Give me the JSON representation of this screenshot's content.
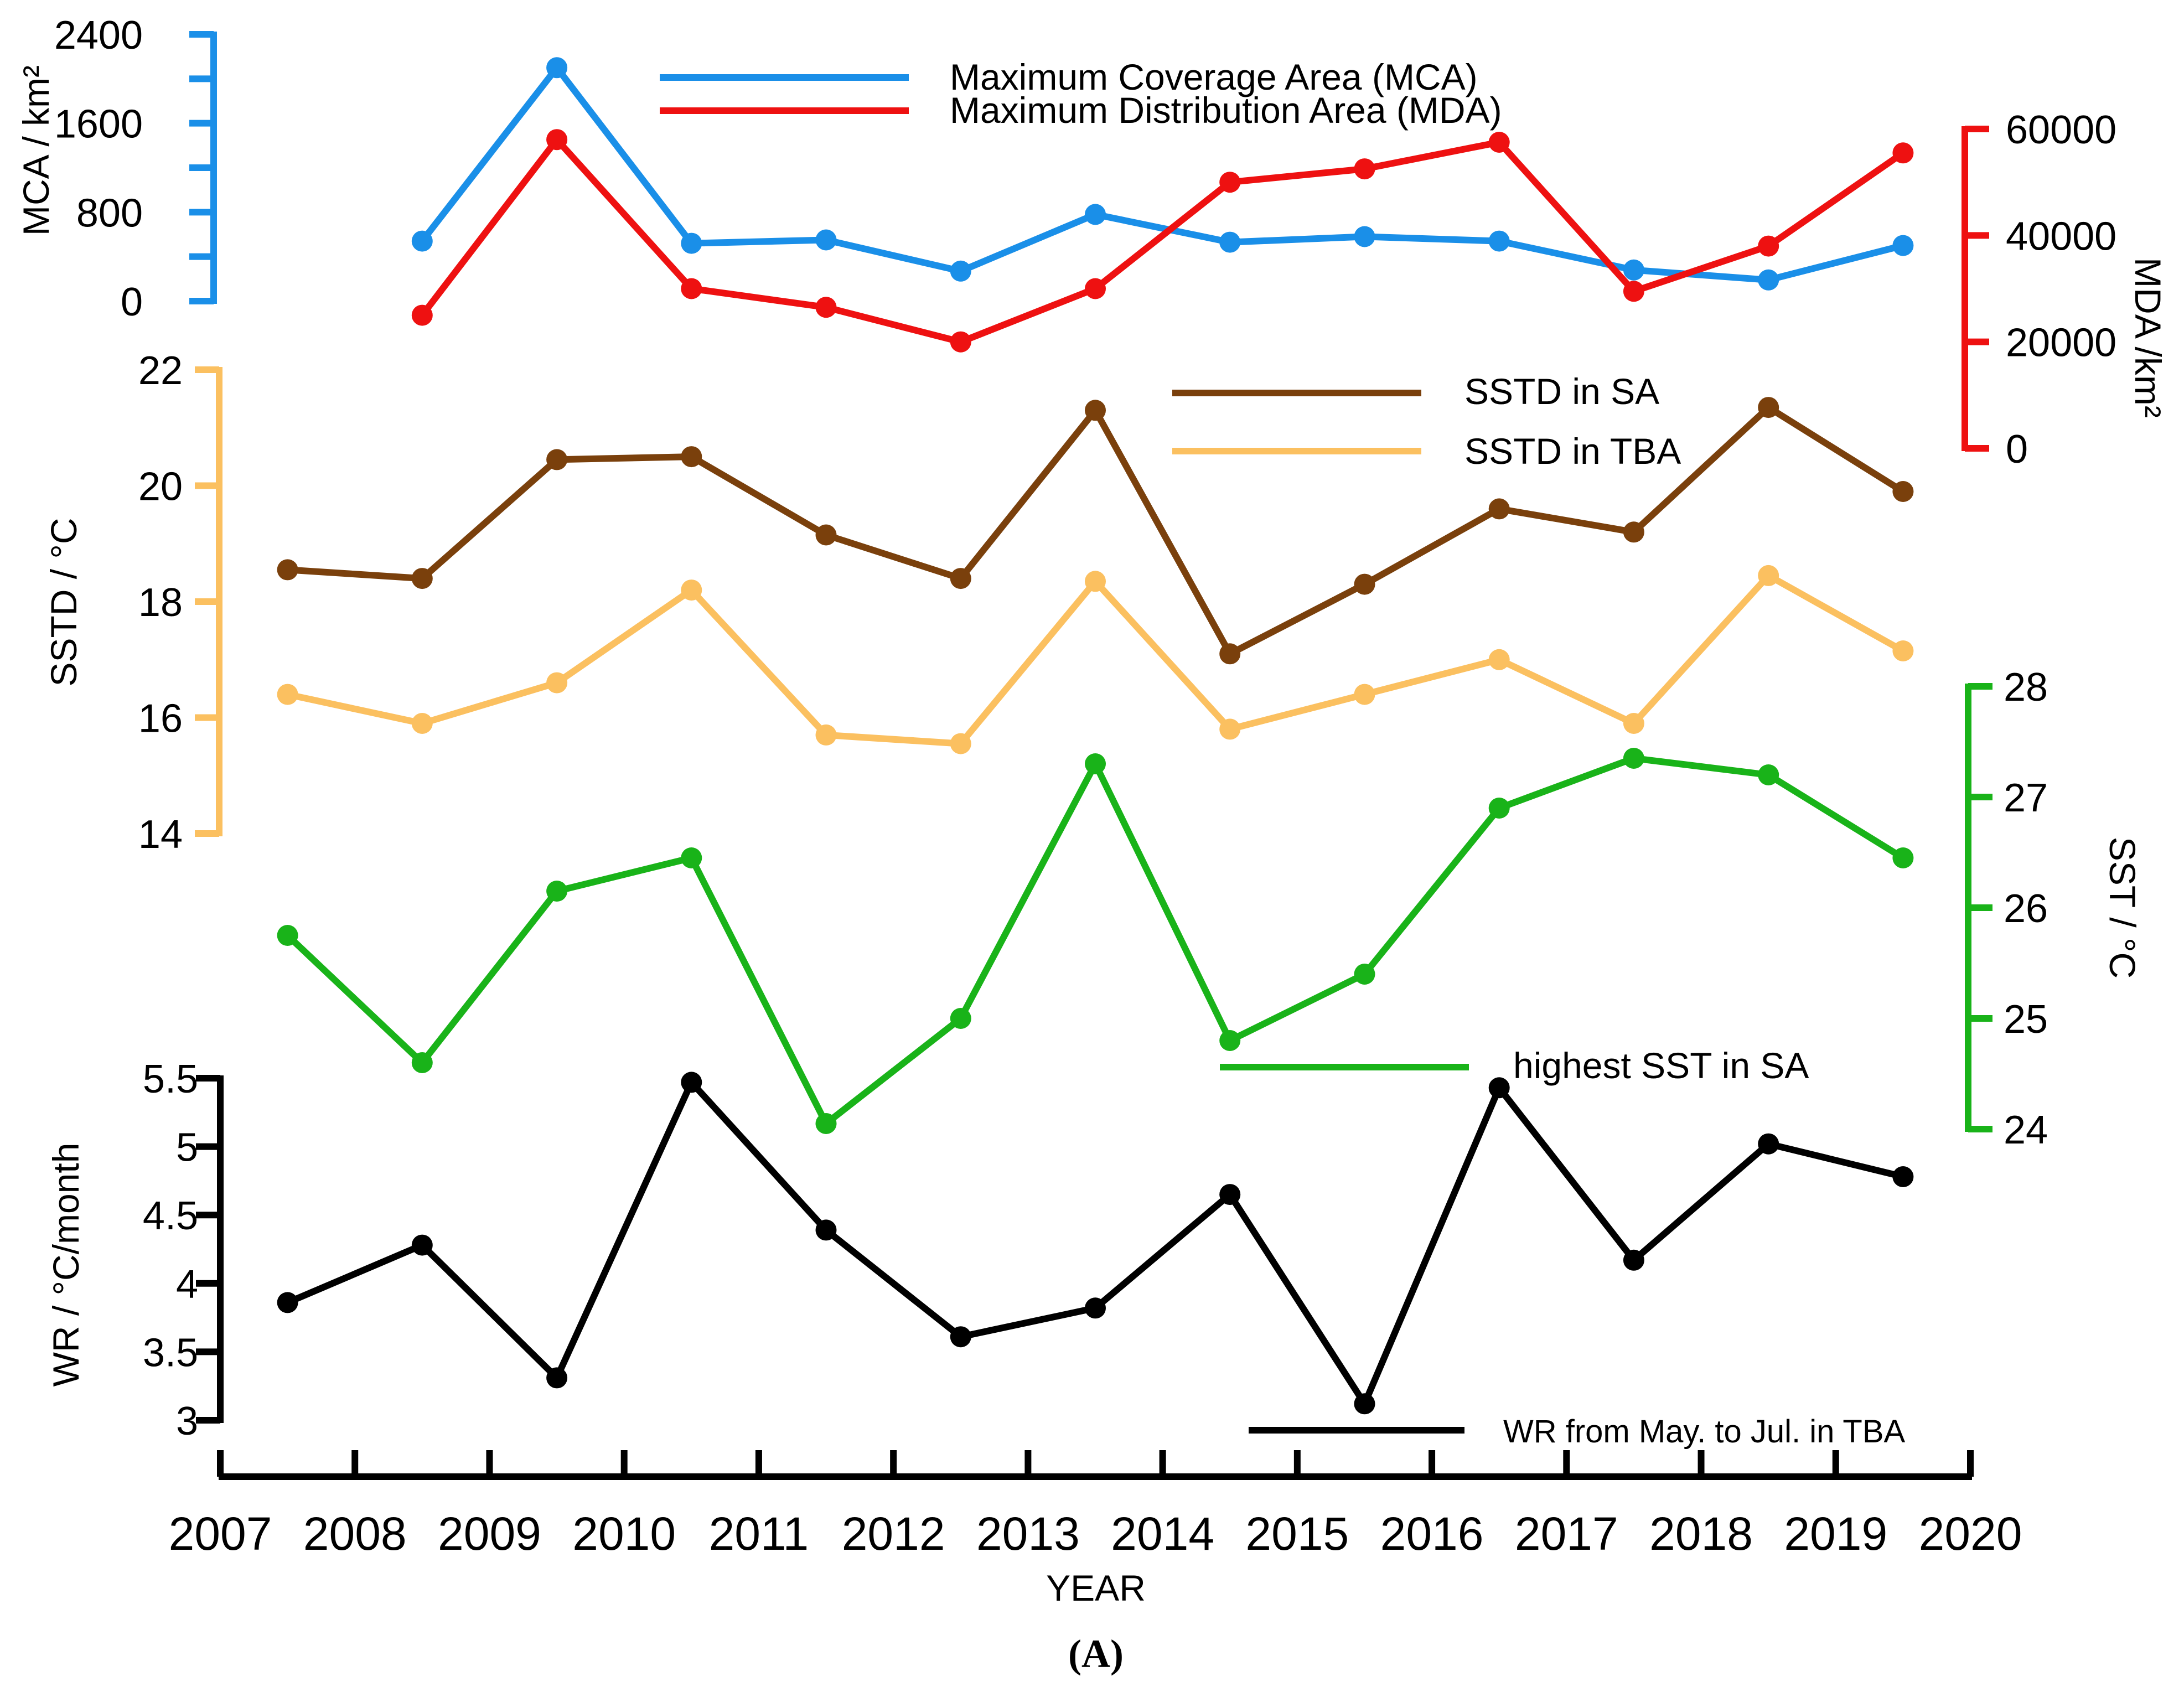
{
  "chart_data": {
    "type": "line",
    "xlabel": "YEAR",
    "caption": "(A)",
    "x_ticks": [
      "2007",
      "2008",
      "2009",
      "2010",
      "2011",
      "2012",
      "2013",
      "2014",
      "2015",
      "2016",
      "2017",
      "2018",
      "2019",
      "2020"
    ],
    "x": [
      2007.5,
      2008.5,
      2009.5,
      2010.5,
      2011.5,
      2012.5,
      2013.5,
      2014.5,
      2015.5,
      2016.5,
      2017.5,
      2018.5,
      2019.5
    ],
    "axes": [
      {
        "key": "mca",
        "label": "MCA / km²",
        "ylim": [
          0,
          2400
        ],
        "ticks": [
          "0",
          "800",
          "1600",
          "2400"
        ],
        "side": "left",
        "color": "#1a8fe8"
      },
      {
        "key": "mda",
        "label": "MDA /km²",
        "ylim": [
          0,
          60000
        ],
        "ticks": [
          "0",
          "20000",
          "40000",
          "60000"
        ],
        "side": "right",
        "color": "#ee1111"
      },
      {
        "key": "sstd",
        "label": "SSTD / °C",
        "ylim": [
          14,
          22
        ],
        "ticks": [
          "14",
          "16",
          "18",
          "20",
          "22"
        ],
        "side": "left",
        "color": "#fbc060"
      },
      {
        "key": "sst",
        "label": "SST / °C",
        "ylim": [
          24,
          28
        ],
        "ticks": [
          "24",
          "25",
          "26",
          "27",
          "28"
        ],
        "side": "right",
        "color": "#19b319"
      },
      {
        "key": "wr",
        "label": "WR / °C/month",
        "ylim": [
          3,
          5.5
        ],
        "ticks": [
          "3",
          "3.5",
          "4",
          "4.5",
          "5",
          "5.5"
        ],
        "side": "left",
        "color": "#000000"
      }
    ],
    "series": [
      {
        "key": "mca",
        "axis": "mca",
        "name": "Maximum Coverage Area (MCA)",
        "color": "#1a8fe8",
        "values": [
          null,
          540,
          2100,
          520,
          550,
          270,
          780,
          530,
          580,
          540,
          280,
          190,
          500
        ]
      },
      {
        "key": "mda",
        "axis": "mda",
        "name": "Maximum Distribution Area (MDA)",
        "color": "#ee1111",
        "values": [
          null,
          25000,
          58000,
          30000,
          26500,
          20000,
          30000,
          50000,
          52500,
          57500,
          29500,
          38000,
          55500
        ]
      },
      {
        "key": "sstd_sa",
        "axis": "sstd",
        "name": "SSTD in SA",
        "color": "#7a400c",
        "values": [
          18.55,
          18.4,
          20.45,
          20.5,
          19.15,
          18.4,
          21.3,
          17.1,
          18.3,
          19.6,
          19.2,
          21.35,
          19.9
        ]
      },
      {
        "key": "sstd_tba",
        "axis": "sstd",
        "name": "SSTD in TBA",
        "color": "#fbc060",
        "values": [
          16.4,
          15.9,
          16.6,
          18.2,
          15.7,
          15.55,
          18.35,
          15.8,
          16.4,
          17.0,
          15.9,
          18.45,
          17.15
        ]
      },
      {
        "key": "sst",
        "axis": "sst",
        "name": "highest SST in SA",
        "color": "#19b319",
        "values": [
          25.75,
          24.6,
          26.15,
          26.45,
          24.05,
          25.0,
          27.3,
          24.8,
          25.4,
          26.9,
          27.35,
          27.2,
          26.45
        ]
      },
      {
        "key": "wr",
        "axis": "wr",
        "name": "WR from May. to Jul. in TBA",
        "color": "#000000",
        "values": [
          3.86,
          4.28,
          3.31,
          5.47,
          4.39,
          3.61,
          3.82,
          4.65,
          3.12,
          5.43,
          4.17,
          5.02,
          4.78
        ]
      }
    ]
  }
}
